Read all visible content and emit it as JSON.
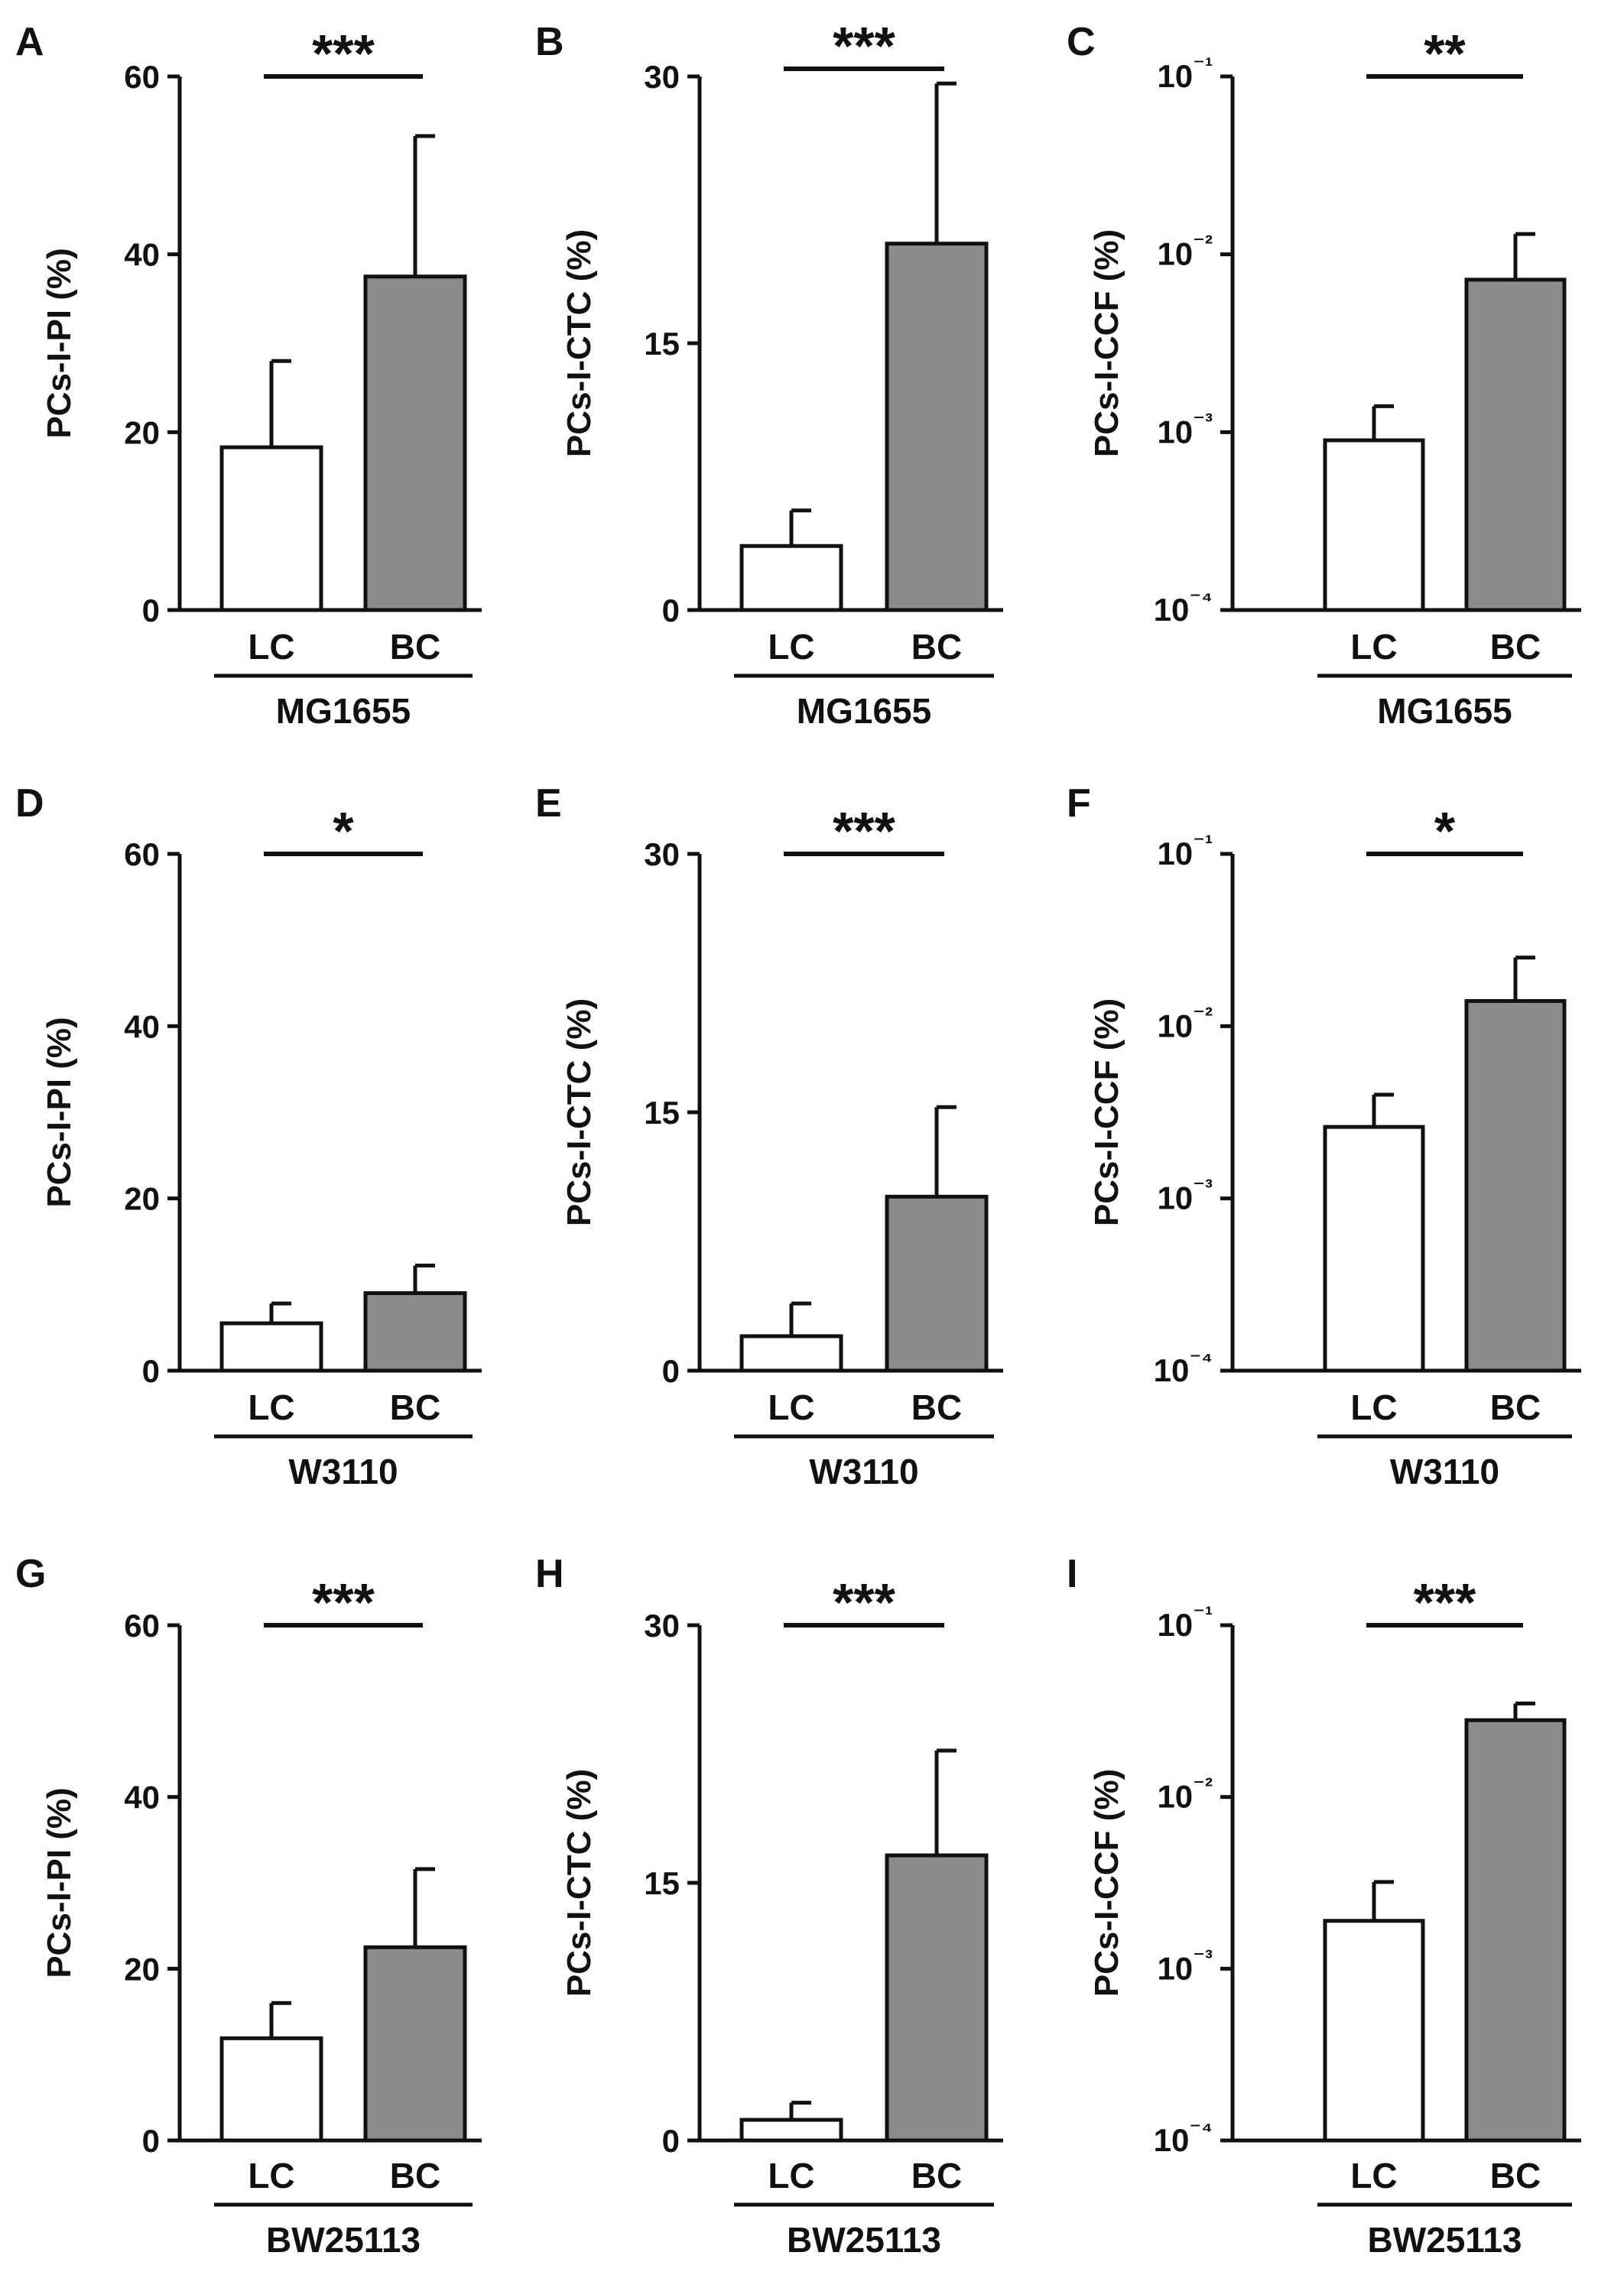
{
  "chart_data": [
    {
      "panel": "A",
      "type": "bar",
      "scale": "linear",
      "strain": "MG1655",
      "ylabel": "PCs-I-PI (%)",
      "ylim": [
        0,
        60
      ],
      "yticks": [
        "0",
        "20",
        "40",
        "60"
      ],
      "categories": [
        "LC",
        "BC"
      ],
      "values": [
        18.3,
        37.5
      ],
      "errors": [
        9.7,
        15.8
      ],
      "significance": "***"
    },
    {
      "panel": "B",
      "type": "bar",
      "scale": "linear",
      "strain": "MG1655",
      "ylabel": "PCs-I-CTC (%)",
      "ylim": [
        0,
        30
      ],
      "yticks": [
        "0",
        "15",
        "30"
      ],
      "categories": [
        "LC",
        "BC"
      ],
      "values": [
        3.6,
        20.6
      ],
      "errors": [
        2.0,
        9.0
      ],
      "significance": "***"
    },
    {
      "panel": "C",
      "type": "bar",
      "scale": "log",
      "strain": "MG1655",
      "ylabel": "PCs-I-CCF (%)",
      "ylim_exp": [
        -4,
        -1
      ],
      "yticks": [
        "10⁻⁴",
        "10⁻³",
        "10⁻²",
        "10⁻¹"
      ],
      "categories": [
        "LC",
        "BC"
      ],
      "values": [
        0.0009,
        0.0072
      ],
      "errors_upper": [
        0.0014,
        0.013
      ],
      "significance": "**"
    },
    {
      "panel": "D",
      "type": "bar",
      "scale": "linear",
      "strain": "W3110",
      "ylabel": "PCs-I-PI (%)",
      "ylim": [
        0,
        60
      ],
      "yticks": [
        "0",
        "20",
        "40",
        "60"
      ],
      "categories": [
        "LC",
        "BC"
      ],
      "values": [
        5.5,
        9.0
      ],
      "errors": [
        2.3,
        3.2
      ],
      "significance": "*"
    },
    {
      "panel": "E",
      "type": "bar",
      "scale": "linear",
      "strain": "W3110",
      "ylabel": "PCs-I-CTC (%)",
      "ylim": [
        0,
        30
      ],
      "yticks": [
        "0",
        "15",
        "30"
      ],
      "categories": [
        "LC",
        "BC"
      ],
      "values": [
        2.0,
        10.1
      ],
      "errors": [
        1.9,
        5.2
      ],
      "significance": "***"
    },
    {
      "panel": "F",
      "type": "bar",
      "scale": "log",
      "strain": "W3110",
      "ylabel": "PCs-I-CCF (%)",
      "ylim_exp": [
        -4,
        -1
      ],
      "yticks": [
        "10⁻⁴",
        "10⁻³",
        "10⁻²",
        "10⁻¹"
      ],
      "categories": [
        "LC",
        "BC"
      ],
      "values": [
        0.0026,
        0.014
      ],
      "errors_upper": [
        0.004,
        0.025
      ],
      "significance": "*"
    },
    {
      "panel": "G",
      "type": "bar",
      "scale": "linear",
      "strain": "BW25113",
      "ylabel": "PCs-I-PI (%)",
      "ylim": [
        0,
        60
      ],
      "yticks": [
        "0",
        "20",
        "40",
        "60"
      ],
      "categories": [
        "LC",
        "BC"
      ],
      "values": [
        11.9,
        22.5
      ],
      "errors": [
        4.1,
        9.1
      ],
      "significance": "***"
    },
    {
      "panel": "H",
      "type": "bar",
      "scale": "linear",
      "strain": "BW25113",
      "ylabel": "PCs-I-CTC (%)",
      "ylim": [
        0,
        30
      ],
      "yticks": [
        "0",
        "15",
        "30"
      ],
      "categories": [
        "LC",
        "BC"
      ],
      "values": [
        1.2,
        16.6
      ],
      "errors": [
        1.0,
        6.1
      ],
      "significance": "***"
    },
    {
      "panel": "I",
      "type": "bar",
      "scale": "log",
      "strain": "BW25113",
      "ylabel": "PCs-I-CCF (%)",
      "ylim_exp": [
        -4,
        -1
      ],
      "yticks": [
        "10⁻⁴",
        "10⁻³",
        "10⁻²",
        "10⁻¹"
      ],
      "categories": [
        "LC",
        "BC"
      ],
      "values": [
        0.0019,
        0.028
      ],
      "errors_upper": [
        0.0032,
        0.035
      ],
      "significance": "***"
    }
  ],
  "colors": {
    "lc_fill": "#ffffff",
    "bc_fill": "#8c8c8c",
    "stroke": "#111111"
  }
}
